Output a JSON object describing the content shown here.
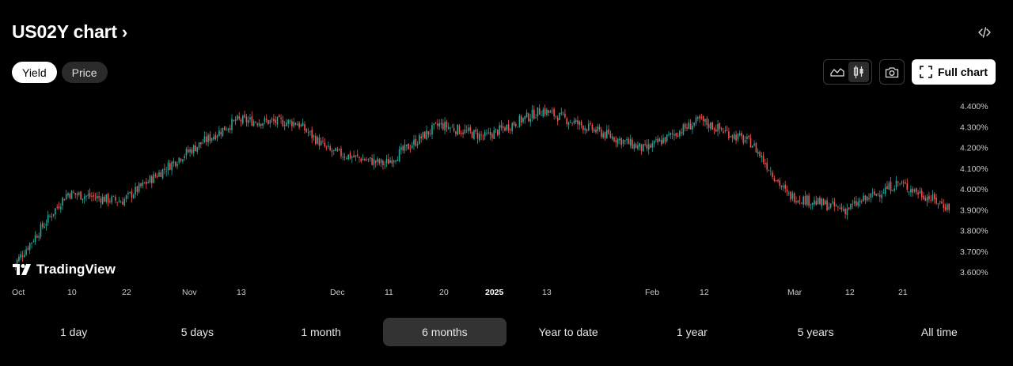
{
  "header": {
    "title": "US02Y chart",
    "chevron": "›",
    "embed_icon": "code-icon"
  },
  "mode_toggle": {
    "options": [
      "Yield",
      "Price"
    ],
    "selected": "Yield"
  },
  "toolbar": {
    "area_icon": "area-chart-icon",
    "candle_icon": "candlestick-icon",
    "camera_icon": "camera-icon",
    "full_chart_label": "Full chart",
    "fullscreen_icon": "fullscreen-icon"
  },
  "watermark": {
    "text": "TradingView"
  },
  "colors": {
    "up": "#26a69a",
    "down": "#ef5350",
    "background": "#000000"
  },
  "chart_data": {
    "type": "candlestick",
    "xlabel": "",
    "ylabel": "",
    "y_ticks": [
      "4.400%",
      "4.300%",
      "4.200%",
      "4.100%",
      "4.000%",
      "3.900%",
      "3.800%",
      "3.700%",
      "3.600%"
    ],
    "ylim": [
      3.58,
      4.44
    ],
    "x_ticks": [
      "Oct",
      "10",
      "22",
      "Nov",
      "13",
      "Dec",
      "11",
      "20",
      "2025",
      "13",
      "Feb",
      "12",
      "Mar",
      "12",
      "21"
    ],
    "x_tick_bold": "2025",
    "series": [
      {
        "dates": [
          "Oct 1",
          "Oct 10",
          "Oct 22",
          "Nov 1",
          "Nov 13",
          "Nov 25",
          "Dec 1",
          "Dec 11",
          "Dec 20",
          "Jan 1",
          "Jan 13",
          "Jan 24",
          "Feb 1",
          "Feb 12",
          "Feb 21",
          "Mar 1",
          "Mar 12",
          "Mar 21",
          "Mar 28"
        ],
        "close": [
          3.63,
          3.98,
          3.94,
          4.16,
          4.33,
          4.32,
          4.18,
          4.12,
          4.31,
          4.25,
          4.38,
          4.27,
          4.19,
          4.33,
          4.22,
          3.97,
          3.9,
          4.03,
          3.91
        ]
      }
    ]
  },
  "time_ranges": {
    "options": [
      "1 day",
      "5 days",
      "1 month",
      "6 months",
      "Year to date",
      "1 year",
      "5 years",
      "All time"
    ],
    "selected": "6 months"
  }
}
